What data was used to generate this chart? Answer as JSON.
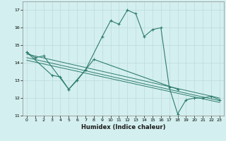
{
  "xlabel": "Humidex (Indice chaleur)",
  "bg_color": "#d4efef",
  "grid_color": "#c0dede",
  "line_color": "#2e7d6e",
  "xlim": [
    -0.5,
    23.5
  ],
  "ylim": [
    11,
    17.5
  ],
  "yticks": [
    11,
    12,
    13,
    14,
    15,
    16,
    17
  ],
  "xticks": [
    0,
    1,
    2,
    3,
    4,
    5,
    6,
    7,
    8,
    9,
    10,
    11,
    12,
    13,
    14,
    15,
    16,
    17,
    18,
    19,
    20,
    21,
    22,
    23
  ],
  "series1": {
    "x": [
      0,
      1,
      2,
      5,
      7,
      9,
      10,
      11,
      12,
      13,
      14,
      15,
      16,
      17,
      18,
      19,
      20,
      21,
      22,
      23
    ],
    "y": [
      14.6,
      14.3,
      14.4,
      12.5,
      13.6,
      15.5,
      16.4,
      16.2,
      17.0,
      16.8,
      15.5,
      15.9,
      16.0,
      12.6,
      11.1,
      11.9,
      12.0,
      12.0,
      12.1,
      11.9
    ]
  },
  "series2": {
    "x": [
      0,
      3,
      4,
      5,
      6,
      7,
      8,
      18
    ],
    "y": [
      14.6,
      13.3,
      13.2,
      12.5,
      13.0,
      13.6,
      14.2,
      12.5
    ]
  },
  "trend1": {
    "x": [
      0,
      23
    ],
    "y": [
      14.5,
      12.0
    ]
  },
  "trend2": {
    "x": [
      0,
      23
    ],
    "y": [
      14.3,
      11.85
    ]
  },
  "trend3": {
    "x": [
      0,
      23
    ],
    "y": [
      14.15,
      11.75
    ]
  }
}
